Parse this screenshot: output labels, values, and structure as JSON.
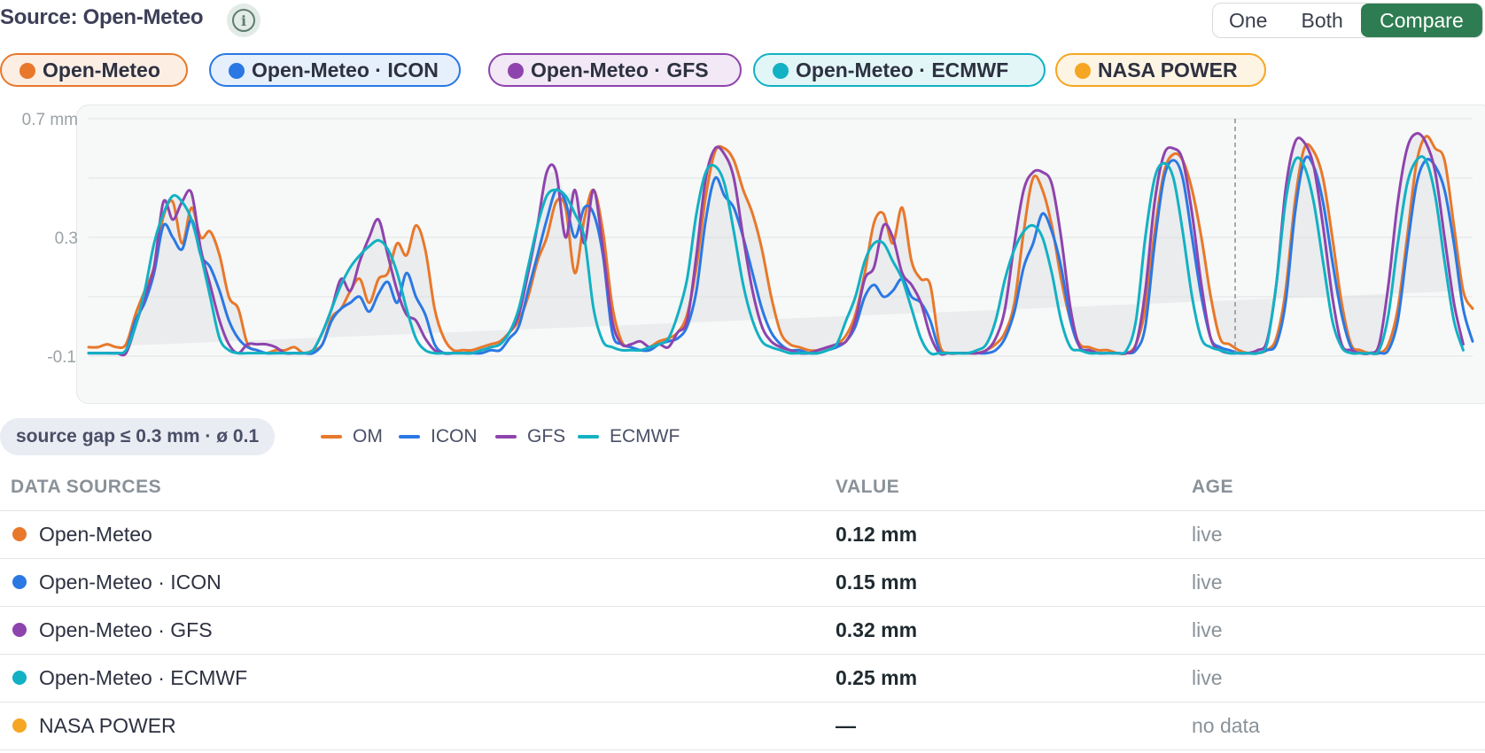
{
  "header": {
    "title": "Source: Open-Meteo",
    "info_icon": "info-icon",
    "modes": [
      "One",
      "Both",
      "Compare"
    ],
    "active_mode": "Compare"
  },
  "chips": [
    {
      "label": "Open-Meteo",
      "color": "#e8782a",
      "bg": "#fdeee4"
    },
    {
      "label": "Open-Meteo · ICON",
      "color": "#2a78e4",
      "bg": "#e6effc"
    },
    {
      "label": "Open-Meteo · GFS",
      "color": "#8e44ad",
      "bg": "#f2e8f6"
    },
    {
      "label": "Open-Meteo · ECMWF",
      "color": "#12b1c3",
      "bg": "#e2f6f8"
    },
    {
      "label": "NASA POWER",
      "color": "#f5a623",
      "bg": "#fef4e3"
    }
  ],
  "chart_data": {
    "type": "line",
    "y_ticks": [
      "0.7 mm",
      "0.3",
      "-0.1"
    ],
    "ylim": [
      -0.1,
      0.7
    ],
    "cursor_marker": "dashed vertical line",
    "series": [
      {
        "name": "OM",
        "color": "#e8782a",
        "values": [
          -0.07,
          -0.07,
          -0.06,
          -0.07,
          -0.06,
          0.04,
          0.12,
          0.2,
          0.37,
          0.42,
          0.28,
          0.4,
          0.3,
          0.32,
          0.24,
          0.1,
          0.06,
          -0.06,
          -0.08,
          -0.09,
          -0.08,
          -0.08,
          -0.07,
          -0.09,
          -0.08,
          -0.06,
          0.03,
          0.06,
          0.12,
          0.16,
          0.08,
          0.16,
          0.18,
          0.28,
          0.24,
          0.34,
          0.26,
          0.06,
          -0.04,
          -0.08,
          -0.08,
          -0.08,
          -0.07,
          -0.06,
          -0.05,
          -0.02,
          0.02,
          0.1,
          0.22,
          0.3,
          0.42,
          0.4,
          0.18,
          0.36,
          0.46,
          0.32,
          0.07,
          -0.05,
          -0.07,
          -0.08,
          -0.07,
          -0.05,
          -0.04,
          -0.02,
          0.04,
          0.2,
          0.44,
          0.59,
          0.6,
          0.56,
          0.46,
          0.38,
          0.26,
          0.1,
          -0.02,
          -0.06,
          -0.07,
          -0.08,
          -0.08,
          -0.07,
          -0.06,
          -0.03,
          0.04,
          0.18,
          0.35,
          0.38,
          0.28,
          0.4,
          0.22,
          0.16,
          0.14,
          -0.06,
          -0.09,
          -0.09,
          -0.09,
          -0.09,
          -0.08,
          -0.06,
          -0.02,
          0.08,
          0.32,
          0.5,
          0.46,
          0.34,
          0.16,
          0.02,
          -0.06,
          -0.07,
          -0.08,
          -0.08,
          -0.09,
          -0.09,
          -0.06,
          0.06,
          0.32,
          0.52,
          0.58,
          0.56,
          0.46,
          0.3,
          0.1,
          -0.04,
          -0.06,
          -0.08,
          -0.09,
          -0.09,
          -0.08,
          -0.04,
          0.12,
          0.42,
          0.6,
          0.59,
          0.5,
          0.3,
          0.08,
          -0.06,
          -0.08,
          -0.09,
          -0.09,
          -0.06,
          0.06,
          0.3,
          0.55,
          0.64,
          0.6,
          0.56,
          0.34,
          0.12,
          0.06
        ]
      },
      {
        "name": "ICON",
        "color": "#2a78e4",
        "values": [
          -0.09,
          -0.09,
          -0.09,
          -0.09,
          -0.08,
          0.02,
          0.08,
          0.18,
          0.34,
          0.3,
          0.26,
          0.36,
          0.24,
          0.2,
          0.12,
          0.02,
          -0.04,
          -0.07,
          -0.08,
          -0.09,
          -0.09,
          -0.09,
          -0.09,
          -0.09,
          -0.09,
          -0.06,
          0.02,
          0.06,
          0.08,
          0.1,
          0.05,
          0.11,
          0.15,
          0.08,
          0.18,
          0.1,
          0.04,
          -0.06,
          -0.09,
          -0.09,
          -0.09,
          -0.09,
          -0.09,
          -0.08,
          -0.08,
          -0.04,
          0.0,
          0.12,
          0.24,
          0.36,
          0.46,
          0.42,
          0.3,
          0.4,
          0.38,
          0.24,
          -0.02,
          -0.06,
          -0.07,
          -0.08,
          -0.08,
          -0.06,
          -0.05,
          -0.04,
          0.0,
          0.12,
          0.36,
          0.5,
          0.44,
          0.4,
          0.3,
          0.18,
          0.06,
          -0.02,
          -0.06,
          -0.08,
          -0.08,
          -0.09,
          -0.09,
          -0.08,
          -0.07,
          -0.05,
          0.0,
          0.1,
          0.14,
          0.1,
          0.12,
          0.16,
          0.1,
          0.08,
          0.02,
          -0.08,
          -0.09,
          -0.09,
          -0.09,
          -0.09,
          -0.09,
          -0.08,
          -0.04,
          0.05,
          0.2,
          0.28,
          0.38,
          0.32,
          0.2,
          0.02,
          -0.07,
          -0.08,
          -0.09,
          -0.09,
          -0.09,
          -0.09,
          -0.08,
          0.0,
          0.28,
          0.5,
          0.56,
          0.5,
          0.3,
          0.1,
          -0.04,
          -0.07,
          -0.08,
          -0.09,
          -0.09,
          -0.09,
          -0.08,
          -0.06,
          0.08,
          0.38,
          0.56,
          0.54,
          0.42,
          0.22,
          0.04,
          -0.07,
          -0.09,
          -0.09,
          -0.09,
          -0.08,
          0.02,
          0.26,
          0.48,
          0.56,
          0.54,
          0.46,
          0.28,
          0.06,
          -0.05
        ]
      },
      {
        "name": "GFS",
        "color": "#8e44ad",
        "values": [
          -0.09,
          -0.09,
          -0.09,
          -0.09,
          -0.09,
          0.0,
          0.1,
          0.2,
          0.42,
          0.36,
          0.42,
          0.45,
          0.26,
          0.14,
          0.02,
          -0.06,
          -0.09,
          -0.06,
          -0.06,
          -0.06,
          -0.07,
          -0.09,
          -0.09,
          -0.09,
          -0.08,
          -0.02,
          0.06,
          0.16,
          0.12,
          0.22,
          0.3,
          0.36,
          0.24,
          0.12,
          0.04,
          0.02,
          -0.04,
          -0.08,
          -0.09,
          -0.09,
          -0.09,
          -0.09,
          -0.08,
          -0.07,
          -0.06,
          -0.02,
          0.04,
          0.18,
          0.34,
          0.52,
          0.52,
          0.3,
          0.46,
          0.28,
          0.46,
          0.26,
          0.02,
          -0.06,
          -0.06,
          -0.05,
          -0.07,
          -0.06,
          -0.07,
          -0.02,
          0.02,
          0.24,
          0.5,
          0.6,
          0.58,
          0.5,
          0.3,
          0.12,
          0.0,
          -0.05,
          -0.07,
          -0.08,
          -0.09,
          -0.09,
          -0.08,
          -0.07,
          -0.06,
          -0.05,
          0.02,
          0.16,
          0.2,
          0.34,
          0.3,
          0.18,
          0.14,
          0.08,
          -0.03,
          -0.09,
          -0.09,
          -0.09,
          -0.09,
          -0.09,
          -0.08,
          -0.04,
          0.06,
          0.28,
          0.46,
          0.52,
          0.52,
          0.48,
          0.3,
          0.06,
          -0.07,
          -0.08,
          -0.09,
          -0.09,
          -0.09,
          -0.09,
          -0.06,
          0.12,
          0.42,
          0.58,
          0.6,
          0.56,
          0.38,
          0.14,
          -0.04,
          -0.08,
          -0.09,
          -0.09,
          -0.09,
          -0.08,
          -0.05,
          0.14,
          0.46,
          0.62,
          0.62,
          0.54,
          0.34,
          0.1,
          -0.06,
          -0.08,
          -0.09,
          -0.09,
          -0.06,
          0.14,
          0.42,
          0.6,
          0.65,
          0.62,
          0.52,
          0.3,
          0.08,
          -0.06
        ]
      },
      {
        "name": "ECMWF",
        "color": "#12b1c3",
        "values": [
          -0.09,
          -0.09,
          -0.09,
          -0.09,
          -0.08,
          0.0,
          0.12,
          0.28,
          0.38,
          0.44,
          0.42,
          0.36,
          0.24,
          0.1,
          -0.04,
          -0.08,
          -0.09,
          -0.09,
          -0.09,
          -0.09,
          -0.09,
          -0.09,
          -0.09,
          -0.09,
          -0.08,
          -0.02,
          0.06,
          0.14,
          0.2,
          0.24,
          0.27,
          0.29,
          0.26,
          0.18,
          0.06,
          -0.04,
          -0.08,
          -0.09,
          -0.09,
          -0.09,
          -0.09,
          -0.09,
          -0.08,
          -0.07,
          -0.06,
          -0.02,
          0.06,
          0.2,
          0.34,
          0.44,
          0.46,
          0.44,
          0.38,
          0.3,
          0.06,
          -0.05,
          -0.07,
          -0.08,
          -0.08,
          -0.08,
          -0.07,
          -0.06,
          -0.04,
          0.04,
          0.16,
          0.38,
          0.52,
          0.54,
          0.48,
          0.32,
          0.14,
          0.02,
          -0.05,
          -0.07,
          -0.08,
          -0.09,
          -0.09,
          -0.09,
          -0.09,
          -0.08,
          -0.06,
          0.02,
          0.1,
          0.22,
          0.28,
          0.28,
          0.22,
          0.16,
          0.06,
          -0.04,
          -0.09,
          -0.09,
          -0.09,
          -0.09,
          -0.09,
          -0.08,
          -0.06,
          0.02,
          0.16,
          0.26,
          0.32,
          0.34,
          0.3,
          0.18,
          0.02,
          -0.07,
          -0.08,
          -0.09,
          -0.09,
          -0.09,
          -0.09,
          -0.08,
          0.02,
          0.3,
          0.5,
          0.55,
          0.5,
          0.32,
          0.1,
          -0.04,
          -0.07,
          -0.08,
          -0.09,
          -0.09,
          -0.09,
          -0.09,
          -0.06,
          0.14,
          0.42,
          0.56,
          0.54,
          0.42,
          0.22,
          0.02,
          -0.07,
          -0.09,
          -0.09,
          -0.09,
          -0.08,
          0.04,
          0.28,
          0.48,
          0.56,
          0.56,
          0.44,
          0.22,
          0.02,
          -0.08
        ]
      }
    ]
  },
  "summary": {
    "gap_badge": "source gap ≤ 0.3 mm · ø 0.1",
    "legend": [
      {
        "label": "OM",
        "color": "#e8782a"
      },
      {
        "label": "ICON",
        "color": "#2a78e4"
      },
      {
        "label": "GFS",
        "color": "#8e44ad"
      },
      {
        "label": "ECMWF",
        "color": "#12b1c3"
      }
    ]
  },
  "table": {
    "headers": [
      "DATA SOURCES",
      "VALUE",
      "AGE"
    ],
    "rows": [
      {
        "name": "Open-Meteo",
        "color": "#e8782a",
        "value": "0.12 mm",
        "age": "live"
      },
      {
        "name": "Open-Meteo · ICON",
        "color": "#2a78e4",
        "value": "0.15 mm",
        "age": "live"
      },
      {
        "name": "Open-Meteo · GFS",
        "color": "#8e44ad",
        "value": "0.32 mm",
        "age": "live"
      },
      {
        "name": "Open-Meteo · ECMWF",
        "color": "#12b1c3",
        "value": "0.25 mm",
        "age": "live"
      },
      {
        "name": "NASA POWER",
        "color": "#f5a623",
        "value": "—",
        "age": "no data"
      }
    ]
  }
}
